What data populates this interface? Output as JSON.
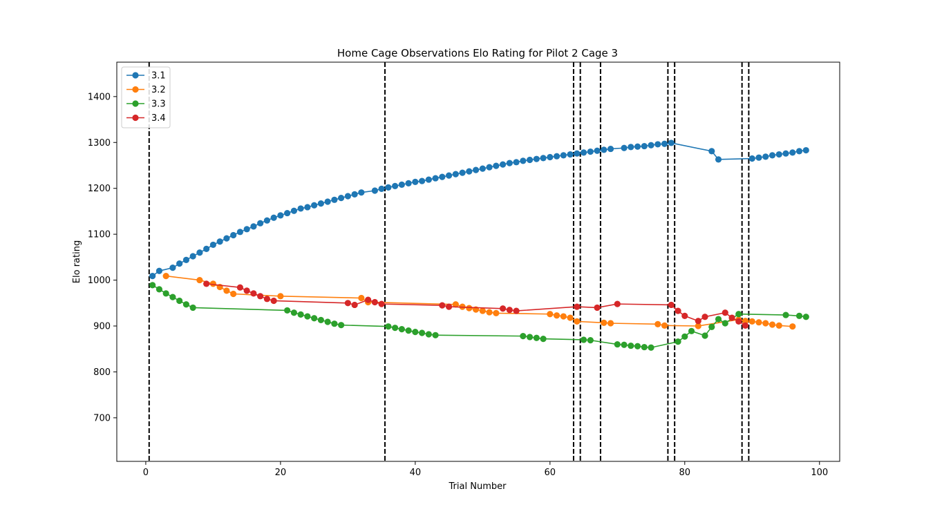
{
  "chart_data": {
    "type": "line",
    "title": "Home Cage Observations Elo Rating for Pilot 2 Cage 3",
    "xlabel": "Trial Number",
    "ylabel": "Elo rating",
    "xlim": [
      -4.3,
      103.0
    ],
    "ylim": [
      605,
      1475
    ],
    "xticks": [
      0,
      20,
      40,
      60,
      80,
      100
    ],
    "yticks": [
      700,
      800,
      900,
      1000,
      1100,
      1200,
      1300,
      1400
    ],
    "grid": false,
    "legend_position": "top-left",
    "vlines": [
      0.5,
      35.5,
      63.5,
      64.5,
      67.5,
      77.5,
      78.5,
      88.5,
      89.5
    ],
    "series": [
      {
        "name": "3.1",
        "color": "#1f77b4",
        "points": [
          [
            1,
            1009
          ],
          [
            2,
            1020
          ],
          [
            4,
            1027
          ],
          [
            5,
            1036
          ],
          [
            6,
            1044
          ],
          [
            7,
            1052
          ],
          [
            8,
            1060
          ],
          [
            9,
            1068
          ],
          [
            10,
            1077
          ],
          [
            11,
            1084
          ],
          [
            12,
            1091
          ],
          [
            13,
            1098
          ],
          [
            14,
            1105
          ],
          [
            15,
            1111
          ],
          [
            16,
            1117
          ],
          [
            17,
            1124
          ],
          [
            18,
            1130
          ],
          [
            19,
            1136
          ],
          [
            20,
            1141
          ],
          [
            21,
            1146
          ],
          [
            22,
            1151
          ],
          [
            23,
            1156
          ],
          [
            24,
            1159
          ],
          [
            25,
            1163
          ],
          [
            26,
            1167
          ],
          [
            27,
            1171
          ],
          [
            28,
            1175
          ],
          [
            29,
            1179
          ],
          [
            30,
            1183
          ],
          [
            31,
            1187
          ],
          [
            32,
            1191
          ],
          [
            34,
            1195
          ],
          [
            35,
            1199
          ],
          [
            36,
            1202
          ],
          [
            37,
            1205
          ],
          [
            38,
            1208
          ],
          [
            39,
            1211
          ],
          [
            40,
            1214
          ],
          [
            41,
            1216
          ],
          [
            42,
            1219
          ],
          [
            43,
            1222
          ],
          [
            44,
            1225
          ],
          [
            45,
            1228
          ],
          [
            46,
            1231
          ],
          [
            47,
            1234
          ],
          [
            48,
            1237
          ],
          [
            49,
            1240
          ],
          [
            50,
            1243
          ],
          [
            51,
            1246
          ],
          [
            52,
            1249
          ],
          [
            53,
            1252
          ],
          [
            54,
            1255
          ],
          [
            55,
            1257
          ],
          [
            56,
            1260
          ],
          [
            57,
            1262
          ],
          [
            58,
            1264
          ],
          [
            59,
            1266
          ],
          [
            60,
            1268
          ],
          [
            61,
            1270
          ],
          [
            62,
            1272
          ],
          [
            63,
            1274
          ],
          [
            64,
            1276
          ],
          [
            65,
            1278
          ],
          [
            66,
            1280
          ],
          [
            67,
            1282
          ],
          [
            68,
            1284
          ],
          [
            69,
            1286
          ],
          [
            71,
            1288
          ],
          [
            72,
            1290
          ],
          [
            73,
            1291
          ],
          [
            74,
            1292
          ],
          [
            75,
            1294
          ],
          [
            76,
            1296
          ],
          [
            77,
            1297
          ],
          [
            78,
            1299
          ],
          [
            84,
            1281
          ],
          [
            85,
            1263
          ],
          [
            90,
            1265
          ],
          [
            91,
            1267
          ],
          [
            92,
            1269
          ],
          [
            93,
            1272
          ],
          [
            94,
            1274
          ],
          [
            95,
            1276
          ],
          [
            96,
            1278
          ],
          [
            97,
            1281
          ],
          [
            98,
            1283
          ]
        ]
      },
      {
        "name": "3.2",
        "color": "#ff7f0e",
        "points": [
          [
            3,
            1009
          ],
          [
            8,
            1000
          ],
          [
            10,
            992
          ],
          [
            11,
            985
          ],
          [
            12,
            977
          ],
          [
            13,
            970
          ],
          [
            20,
            965
          ],
          [
            32,
            961
          ],
          [
            33,
            952
          ],
          [
            46,
            947
          ],
          [
            47,
            942
          ],
          [
            48,
            939
          ],
          [
            49,
            936
          ],
          [
            50,
            933
          ],
          [
            51,
            930
          ],
          [
            52,
            928
          ],
          [
            60,
            926
          ],
          [
            61,
            923
          ],
          [
            62,
            921
          ],
          [
            63,
            918
          ],
          [
            64,
            910
          ],
          [
            68,
            907
          ],
          [
            69,
            906
          ],
          [
            76,
            904
          ],
          [
            77,
            901
          ],
          [
            82,
            900
          ],
          [
            88,
            914
          ],
          [
            89,
            911
          ],
          [
            90,
            910
          ],
          [
            91,
            908
          ],
          [
            92,
            906
          ],
          [
            93,
            903
          ],
          [
            94,
            901
          ],
          [
            96,
            899
          ]
        ]
      },
      {
        "name": "3.3",
        "color": "#2ca02c",
        "points": [
          [
            1,
            989
          ],
          [
            2,
            980
          ],
          [
            3,
            971
          ],
          [
            4,
            963
          ],
          [
            5,
            955
          ],
          [
            6,
            947
          ],
          [
            7,
            940
          ],
          [
            21,
            934
          ],
          [
            22,
            929
          ],
          [
            23,
            925
          ],
          [
            24,
            921
          ],
          [
            25,
            917
          ],
          [
            26,
            913
          ],
          [
            27,
            909
          ],
          [
            28,
            905
          ],
          [
            29,
            902
          ],
          [
            36,
            899
          ],
          [
            37,
            896
          ],
          [
            38,
            893
          ],
          [
            39,
            890
          ],
          [
            40,
            887
          ],
          [
            41,
            885
          ],
          [
            42,
            882
          ],
          [
            43,
            880
          ],
          [
            56,
            878
          ],
          [
            57,
            876
          ],
          [
            58,
            874
          ],
          [
            59,
            872
          ],
          [
            65,
            870
          ],
          [
            66,
            869
          ],
          [
            70,
            860
          ],
          [
            71,
            859
          ],
          [
            72,
            857
          ],
          [
            73,
            856
          ],
          [
            74,
            854
          ],
          [
            75,
            853
          ],
          [
            79,
            866
          ],
          [
            80,
            877
          ],
          [
            81,
            889
          ],
          [
            83,
            879
          ],
          [
            84,
            898
          ],
          [
            85,
            915
          ],
          [
            86,
            906
          ],
          [
            88,
            926
          ],
          [
            95,
            924
          ],
          [
            97,
            922
          ],
          [
            98,
            920
          ]
        ]
      },
      {
        "name": "3.4",
        "color": "#d62728",
        "points": [
          [
            9,
            992
          ],
          [
            14,
            984
          ],
          [
            15,
            977
          ],
          [
            16,
            971
          ],
          [
            17,
            965
          ],
          [
            18,
            959
          ],
          [
            19,
            955
          ],
          [
            30,
            950
          ],
          [
            31,
            946
          ],
          [
            33,
            957
          ],
          [
            34,
            952
          ],
          [
            35,
            948
          ],
          [
            44,
            945
          ],
          [
            45,
            942
          ],
          [
            53,
            938
          ],
          [
            54,
            935
          ],
          [
            55,
            933
          ],
          [
            64,
            942
          ],
          [
            67,
            940
          ],
          [
            70,
            948
          ],
          [
            78,
            946
          ],
          [
            79,
            933
          ],
          [
            80,
            922
          ],
          [
            82,
            911
          ],
          [
            83,
            920
          ],
          [
            86,
            929
          ],
          [
            87,
            918
          ],
          [
            88,
            910
          ],
          [
            89,
            901
          ]
        ]
      }
    ]
  }
}
